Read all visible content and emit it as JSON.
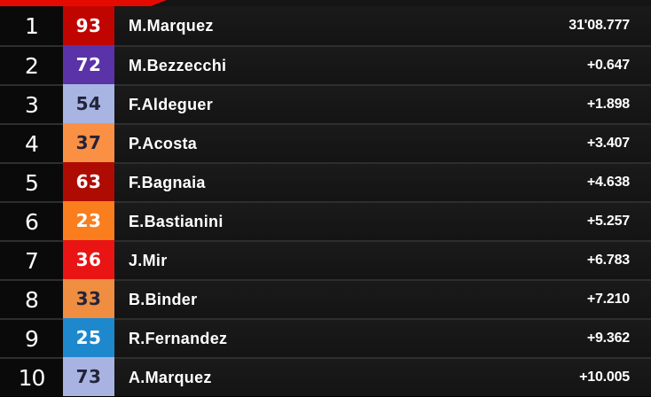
{
  "header": {
    "accent_color": "#e50a00"
  },
  "table": {
    "type": "race-standings",
    "rows": [
      {
        "position": "1",
        "number": "93",
        "number_bg": "#c00500",
        "number_fg": "#ffffff",
        "rider": "M.Marquez",
        "time": "31'08.777"
      },
      {
        "position": "2",
        "number": "72",
        "number_bg": "#5a33a8",
        "number_fg": "#ffffff",
        "rider": "M.Bezzecchi",
        "time": "+0.647"
      },
      {
        "position": "3",
        "number": "54",
        "number_bg": "#a8b4e2",
        "number_fg": "#23233a",
        "rider": "F.Aldeguer",
        "time": "+1.898"
      },
      {
        "position": "4",
        "number": "37",
        "number_bg": "#fa9044",
        "number_fg": "#23233a",
        "rider": "P.Acosta",
        "time": "+3.407"
      },
      {
        "position": "5",
        "number": "63",
        "number_bg": "#ae0c03",
        "number_fg": "#ffffff",
        "rider": "F.Bagnaia",
        "time": "+4.638"
      },
      {
        "position": "6",
        "number": "23",
        "number_bg": "#fa7d1e",
        "number_fg": "#ffffff",
        "rider": "E.Bastianini",
        "time": "+5.257"
      },
      {
        "position": "7",
        "number": "36",
        "number_bg": "#e91414",
        "number_fg": "#ffffff",
        "rider": "J.Mir",
        "time": "+6.783"
      },
      {
        "position": "8",
        "number": "33",
        "number_bg": "#ef8d41",
        "number_fg": "#23233a",
        "rider": "B.Binder",
        "time": "+7.210"
      },
      {
        "position": "9",
        "number": "25",
        "number_bg": "#1e88cd",
        "number_fg": "#ffffff",
        "rider": "R.Fernandez",
        "time": "+9.362"
      },
      {
        "position": "10",
        "number": "73",
        "number_bg": "#a9b3e2",
        "number_fg": "#23233a",
        "rider": "A.Marquez",
        "time": "+10.005"
      }
    ]
  }
}
